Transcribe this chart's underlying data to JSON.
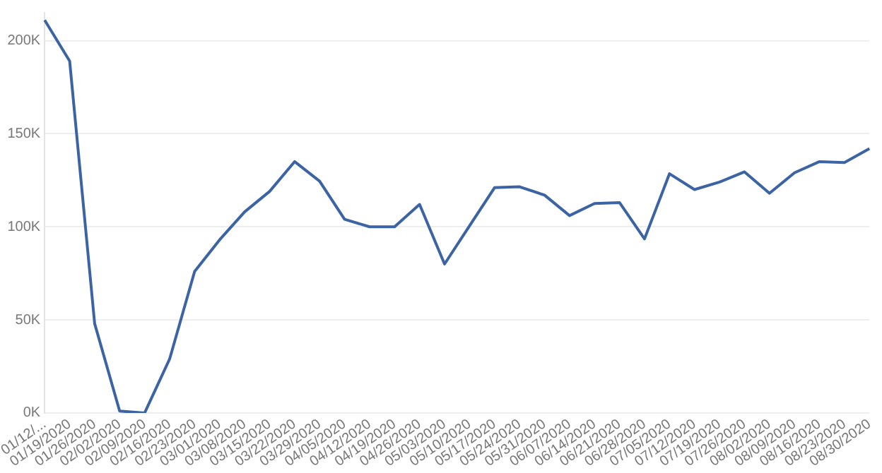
{
  "chart_data": {
    "type": "line",
    "categories": [
      "01/12/...",
      "01/19/2020",
      "01/26/2020",
      "02/02/2020",
      "02/09/2020",
      "02/16/2020",
      "02/23/2020",
      "03/01/2020",
      "03/08/2020",
      "03/15/2020",
      "03/22/2020",
      "03/29/2020",
      "04/05/2020",
      "04/12/2020",
      "04/19/2020",
      "04/26/2020",
      "05/03/2020",
      "05/10/2020",
      "05/17/2020",
      "05/24/2020",
      "05/31/2020",
      "06/07/2020",
      "06/14/2020",
      "06/21/2020",
      "06/28/2020",
      "07/05/2020",
      "07/12/2020",
      "07/19/2020",
      "07/26/2020",
      "08/02/2020",
      "08/09/2020",
      "08/16/2020",
      "08/23/2020",
      "08/30/2020"
    ],
    "series": [
      {
        "color": "#3c64a4",
        "values": [
          211000,
          189000,
          48000,
          1000,
          0,
          29000,
          76000,
          93000,
          108000,
          119000,
          135000,
          124500,
          104000,
          100000,
          100000,
          112000,
          80000,
          100500,
          121000,
          121500,
          117000,
          106000,
          112500,
          113000,
          93500,
          128500,
          120000,
          124000,
          129500,
          118000,
          129000,
          135000,
          134500,
          142000
        ]
      }
    ],
    "ylim": [
      0,
      215000
    ],
    "yticks": [
      {
        "value": 0,
        "label": "0K"
      },
      {
        "value": 50000,
        "label": "50K"
      },
      {
        "value": 100000,
        "label": "100K"
      },
      {
        "value": 150000,
        "label": "150K"
      },
      {
        "value": 200000,
        "label": "200K"
      }
    ],
    "grid": "y",
    "legend": false,
    "marker": "none",
    "line_style": "solid"
  }
}
